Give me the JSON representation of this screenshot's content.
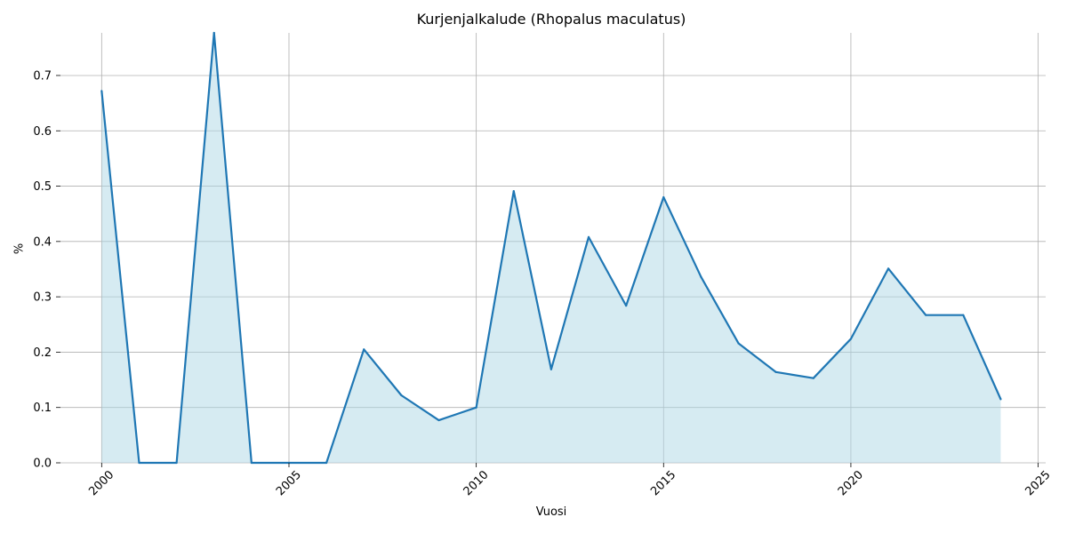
{
  "chart_data": {
    "type": "area",
    "title": "Kurjenjalkalude (Rhopalus maculatus)",
    "xlabel": "Vuosi",
    "ylabel": "%",
    "x": [
      2000,
      2001,
      2002,
      2003,
      2004,
      2005,
      2006,
      2007,
      2008,
      2009,
      2010,
      2011,
      2012,
      2013,
      2014,
      2015,
      2016,
      2017,
      2018,
      2019,
      2020,
      2021,
      2022,
      2023,
      2024
    ],
    "values": [
      0.672,
      0.0,
      0.0,
      0.777,
      0.0,
      0.0,
      0.0,
      0.205,
      0.122,
      0.077,
      0.1,
      0.491,
      0.169,
      0.408,
      0.284,
      0.48,
      0.336,
      0.216,
      0.164,
      0.153,
      0.224,
      0.351,
      0.267,
      0.267,
      0.115
    ],
    "xlim": [
      1998.9,
      2025.2
    ],
    "ylim": [
      0,
      0.777
    ],
    "xticks": [
      "2000",
      "2005",
      "2010",
      "2015",
      "2020",
      "2025"
    ],
    "yticks": [
      "0.0",
      "0.1",
      "0.2",
      "0.3",
      "0.4",
      "0.5",
      "0.6",
      "0.7"
    ],
    "grid": true,
    "line_color": "#1f77b4",
    "fill_color": "#add8e6"
  }
}
